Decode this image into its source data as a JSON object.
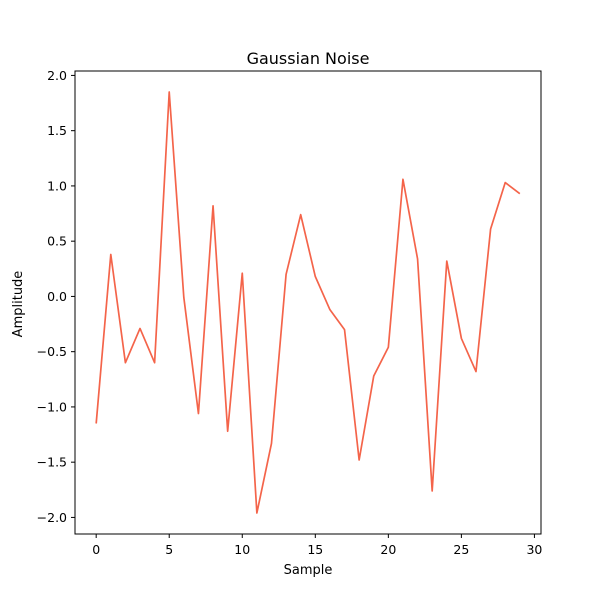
{
  "chart_data": {
    "type": "line",
    "title": "Gaussian Noise",
    "xlabel": "Sample",
    "ylabel": "Amplitude",
    "xlim": [
      -1.45,
      30.45
    ],
    "ylim": [
      -2.15,
      2.04
    ],
    "xticks": [
      0,
      5,
      10,
      15,
      20,
      25,
      30
    ],
    "yticks": [
      -2.0,
      -1.5,
      -1.0,
      -0.5,
      0.0,
      0.5,
      1.0,
      1.5,
      2.0
    ],
    "xtick_labels": [
      "0",
      "5",
      "10",
      "15",
      "20",
      "25",
      "30"
    ],
    "ytick_labels": [
      "−2.0",
      "−1.5",
      "−1.0",
      "−0.5",
      "0.0",
      "0.5",
      "1.0",
      "1.5",
      "2.0"
    ],
    "grid": false,
    "legend": "none",
    "series": [
      {
        "color": "#f4644a",
        "x": [
          0,
          1,
          2,
          3,
          4,
          5,
          6,
          7,
          8,
          9,
          10,
          11,
          12,
          13,
          14,
          15,
          16,
          17,
          18,
          19,
          20,
          21,
          22,
          23,
          24,
          25,
          26,
          27,
          28,
          29
        ],
        "values": [
          -1.15,
          0.38,
          -0.6,
          -0.29,
          -0.6,
          1.85,
          -0.01,
          -1.06,
          0.82,
          -1.22,
          0.21,
          -1.96,
          -1.33,
          0.2,
          0.74,
          0.18,
          -0.12,
          -0.3,
          -1.48,
          -0.72,
          -0.46,
          1.06,
          0.34,
          -1.76,
          0.32,
          -0.38,
          -0.68,
          0.61,
          1.03,
          0.93
        ]
      }
    ]
  }
}
